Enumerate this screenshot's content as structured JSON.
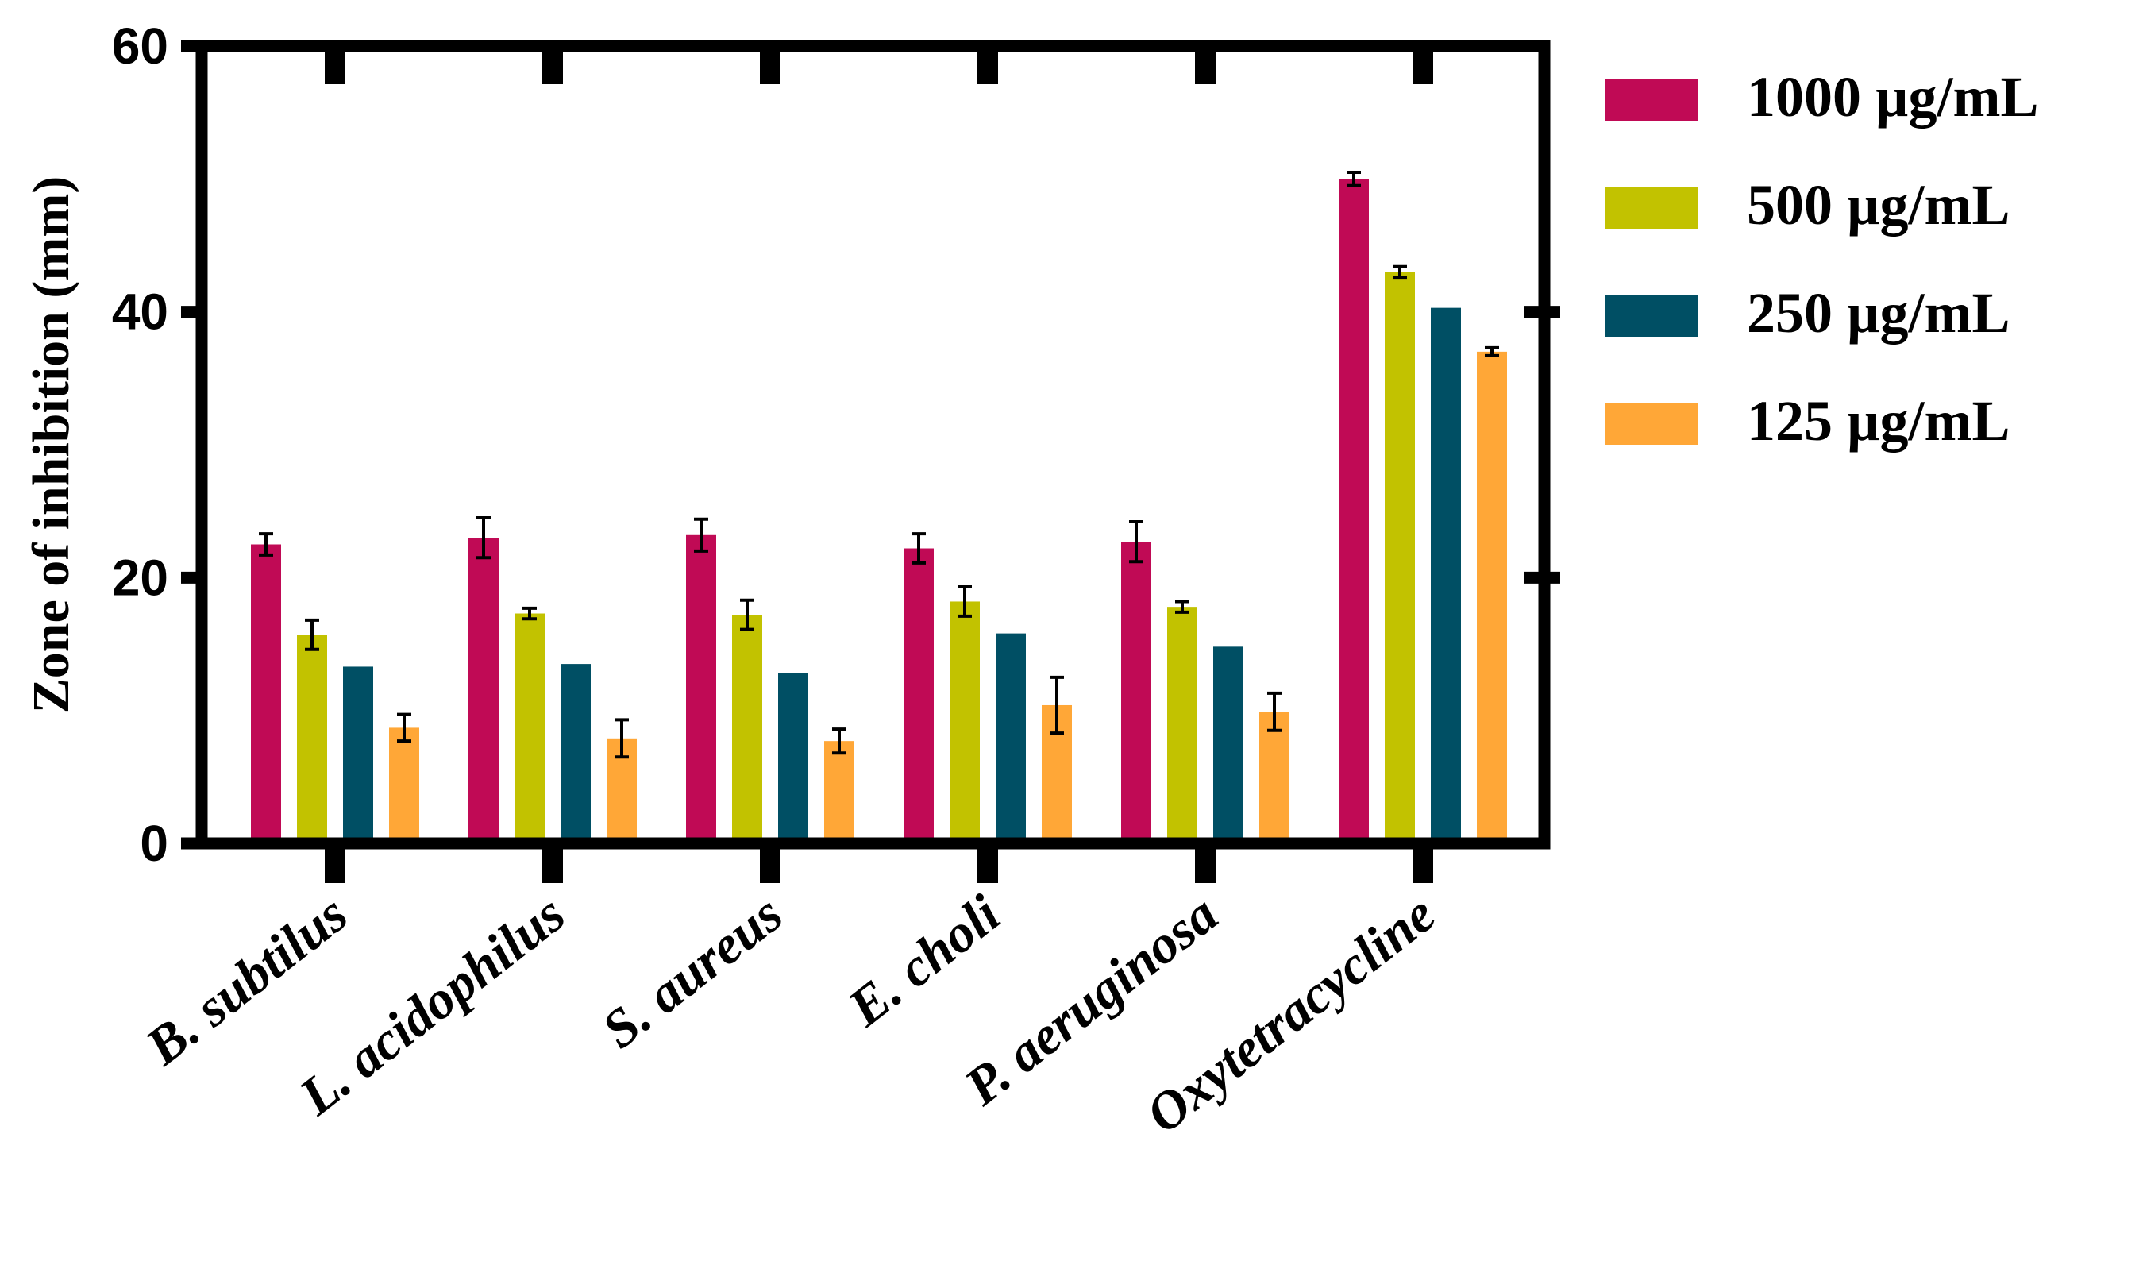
{
  "chart_data": {
    "type": "bar",
    "title": "",
    "xlabel": "",
    "ylabel": "Zone of inhibition (mm)",
    "ylim": [
      0,
      60
    ],
    "yticks": [
      0,
      20,
      40,
      60
    ],
    "grid": false,
    "legend_position": "right",
    "categories": [
      "B. subtilus",
      "L. acidophilus",
      "S. aureus",
      "E. choli",
      "P. aeruginosa",
      "Oxytetracycline"
    ],
    "series": [
      {
        "name": "1000 µg/mL",
        "color": "#C00A55",
        "values": [
          22.5,
          23.0,
          23.2,
          22.2,
          22.7,
          50.0
        ],
        "errors": [
          0.8,
          1.5,
          1.2,
          1.1,
          1.5,
          0.5
        ]
      },
      {
        "name": "500 µg/mL",
        "color": "#C2C200",
        "values": [
          15.7,
          17.3,
          17.2,
          18.2,
          17.8,
          43.0
        ],
        "errors": [
          1.1,
          0.4,
          1.1,
          1.1,
          0.4,
          0.4
        ]
      },
      {
        "name": "250 µg/mL",
        "color": "#004F64",
        "values": [
          13.3,
          13.5,
          12.8,
          15.8,
          14.8,
          40.3
        ],
        "errors": [
          0.0,
          0.0,
          0.0,
          0.0,
          0.0,
          0.0
        ]
      },
      {
        "name": "125 µg/mL",
        "color": "#FFA737",
        "values": [
          8.7,
          7.9,
          7.7,
          10.4,
          9.9,
          37.0
        ],
        "errors": [
          1.0,
          1.4,
          0.9,
          2.1,
          1.4,
          0.3
        ]
      }
    ]
  }
}
